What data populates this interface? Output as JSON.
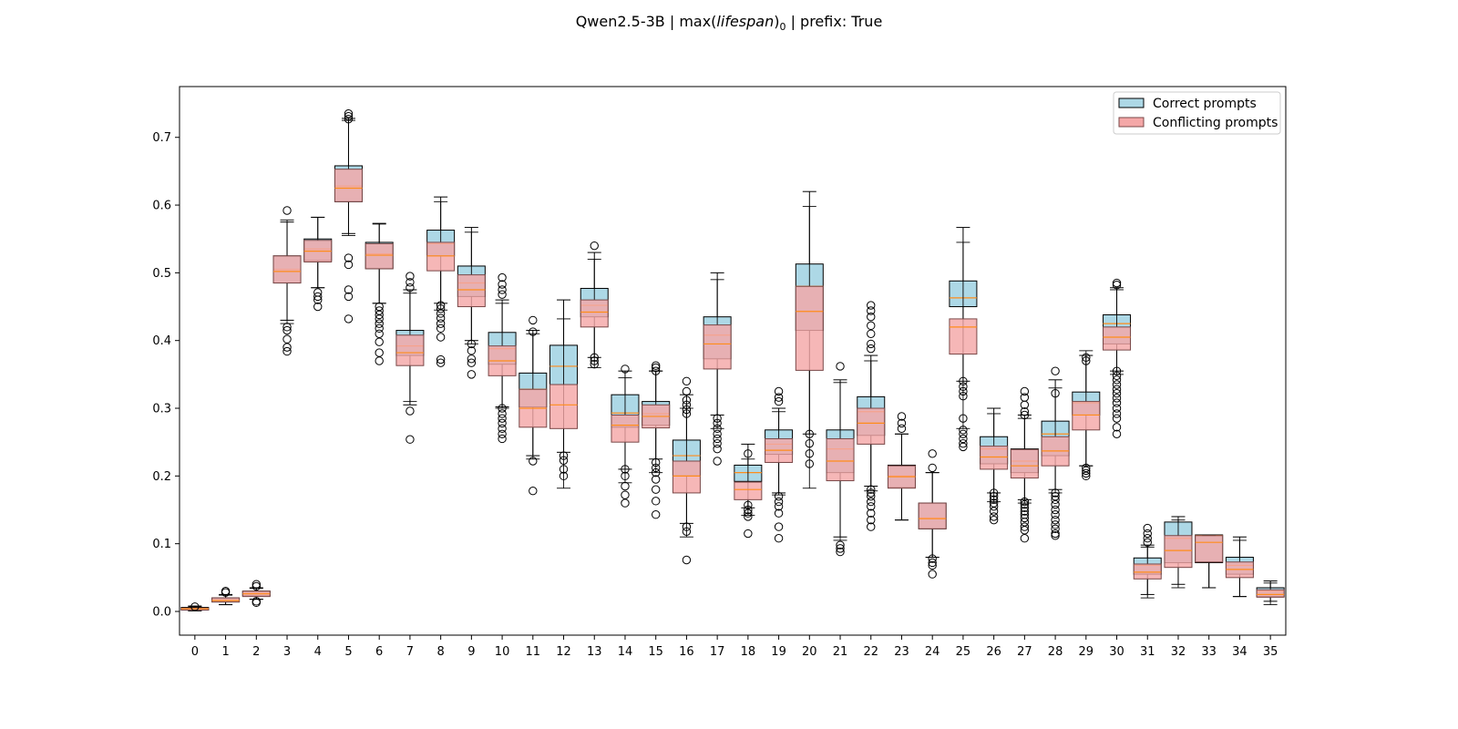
{
  "title": {
    "model": "Qwen2.5-3B",
    "sep1": " | max(",
    "metric": "lifespan",
    "close": ")",
    "sub": "0",
    "sep2": " | prefix: True"
  },
  "chart_data": {
    "type": "boxplot",
    "xlabel": "",
    "ylabel": "",
    "ylim": [
      -0.035,
      0.775
    ],
    "yticks": [
      0.0,
      0.1,
      0.2,
      0.3,
      0.4,
      0.5,
      0.6,
      0.7
    ],
    "ytick_labels": [
      "0.0",
      "0.1",
      "0.2",
      "0.3",
      "0.4",
      "0.5",
      "0.6",
      "0.7"
    ],
    "categories": [
      "0",
      "1",
      "2",
      "3",
      "4",
      "5",
      "6",
      "7",
      "8",
      "9",
      "10",
      "11",
      "12",
      "13",
      "14",
      "15",
      "16",
      "17",
      "18",
      "19",
      "20",
      "21",
      "22",
      "23",
      "24",
      "25",
      "26",
      "27",
      "28",
      "29",
      "30",
      "31",
      "32",
      "33",
      "34",
      "35"
    ],
    "legend_position": "top-right",
    "series": [
      {
        "name": "Correct prompts",
        "color": "#add8e6",
        "stats": [
          [
            0.001,
            0.002,
            0.004,
            0.006,
            0.008
          ],
          [
            0.01,
            0.014,
            0.017,
            0.02,
            0.025
          ],
          [
            0.018,
            0.023,
            0.027,
            0.03,
            0.035
          ],
          [
            0.43,
            0.485,
            0.505,
            0.525,
            0.575
          ],
          [
            0.478,
            0.518,
            0.535,
            0.55,
            0.582
          ],
          [
            0.558,
            0.605,
            0.628,
            0.658,
            0.728
          ],
          [
            0.455,
            0.506,
            0.528,
            0.545,
            0.573
          ],
          [
            0.305,
            0.378,
            0.392,
            0.415,
            0.475
          ],
          [
            0.455,
            0.525,
            0.543,
            0.563,
            0.612
          ],
          [
            0.4,
            0.465,
            0.485,
            0.51,
            0.567
          ],
          [
            0.302,
            0.365,
            0.388,
            0.412,
            0.46
          ],
          [
            0.23,
            0.302,
            0.328,
            0.352,
            0.415
          ],
          [
            0.235,
            0.335,
            0.362,
            0.393,
            0.46
          ],
          [
            0.375,
            0.435,
            0.452,
            0.477,
            0.53
          ],
          [
            0.21,
            0.272,
            0.293,
            0.32,
            0.355
          ],
          [
            0.225,
            0.275,
            0.292,
            0.31,
            0.355
          ],
          [
            0.13,
            0.2,
            0.23,
            0.253,
            0.32
          ],
          [
            0.29,
            0.373,
            0.408,
            0.435,
            0.5
          ],
          [
            0.153,
            0.192,
            0.205,
            0.216,
            0.247
          ],
          [
            0.175,
            0.232,
            0.247,
            0.268,
            0.3
          ],
          [
            0.262,
            0.415,
            0.48,
            0.513,
            0.62
          ],
          [
            0.11,
            0.205,
            0.24,
            0.268,
            0.342
          ],
          [
            0.185,
            0.26,
            0.295,
            0.317,
            0.378
          ],
          [
            0.135,
            0.183,
            0.2,
            0.216,
            0.262
          ],
          [
            0.08,
            0.122,
            0.138,
            0.16,
            0.205
          ],
          [
            0.34,
            0.45,
            0.463,
            0.488,
            0.567
          ],
          [
            0.175,
            0.218,
            0.24,
            0.258,
            0.3
          ],
          [
            0.165,
            0.205,
            0.222,
            0.24,
            0.29
          ],
          [
            0.18,
            0.23,
            0.262,
            0.281,
            0.342
          ],
          [
            0.215,
            0.29,
            0.308,
            0.324,
            0.378
          ],
          [
            0.355,
            0.395,
            0.425,
            0.438,
            0.478
          ],
          [
            0.025,
            0.055,
            0.068,
            0.079,
            0.098
          ],
          [
            0.04,
            0.072,
            0.108,
            0.132,
            0.14
          ],
          [
            0.035,
            0.072,
            0.112,
            0.113,
            0.113
          ],
          [
            0.022,
            0.055,
            0.068,
            0.08,
            0.11
          ],
          [
            0.015,
            0.022,
            0.03,
            0.035,
            0.045
          ]
        ]
      },
      {
        "name": "Conflicting prompts",
        "color": "#f4a7a7",
        "stats": [
          [
            0.001,
            0.002,
            0.004,
            0.005,
            0.007
          ],
          [
            0.01,
            0.014,
            0.016,
            0.02,
            0.024
          ],
          [
            0.018,
            0.022,
            0.026,
            0.03,
            0.034
          ],
          [
            0.425,
            0.485,
            0.502,
            0.525,
            0.578
          ],
          [
            0.478,
            0.516,
            0.532,
            0.548,
            0.582
          ],
          [
            0.555,
            0.605,
            0.625,
            0.653,
            0.725
          ],
          [
            0.455,
            0.506,
            0.526,
            0.543,
            0.572
          ],
          [
            0.31,
            0.363,
            0.382,
            0.408,
            0.47
          ],
          [
            0.445,
            0.503,
            0.525,
            0.545,
            0.605
          ],
          [
            0.395,
            0.45,
            0.475,
            0.497,
            0.56
          ],
          [
            0.3,
            0.348,
            0.37,
            0.392,
            0.455
          ],
          [
            0.225,
            0.272,
            0.3,
            0.328,
            0.41
          ],
          [
            0.182,
            0.27,
            0.305,
            0.335,
            0.432
          ],
          [
            0.36,
            0.42,
            0.442,
            0.46,
            0.52
          ],
          [
            0.19,
            0.25,
            0.275,
            0.29,
            0.345
          ],
          [
            0.205,
            0.271,
            0.288,
            0.305,
            0.355
          ],
          [
            0.11,
            0.175,
            0.2,
            0.222,
            0.3
          ],
          [
            0.27,
            0.358,
            0.395,
            0.423,
            0.49
          ],
          [
            0.142,
            0.165,
            0.18,
            0.191,
            0.225
          ],
          [
            0.172,
            0.22,
            0.238,
            0.255,
            0.295
          ],
          [
            0.182,
            0.356,
            0.443,
            0.48,
            0.598
          ],
          [
            0.105,
            0.193,
            0.222,
            0.255,
            0.338
          ],
          [
            0.178,
            0.247,
            0.278,
            0.3,
            0.37
          ],
          [
            0.135,
            0.182,
            0.199,
            0.215,
            0.262
          ],
          [
            0.08,
            0.122,
            0.137,
            0.16,
            0.205
          ],
          [
            0.27,
            0.38,
            0.42,
            0.432,
            0.545
          ],
          [
            0.162,
            0.21,
            0.228,
            0.244,
            0.292
          ],
          [
            0.16,
            0.197,
            0.215,
            0.239,
            0.285
          ],
          [
            0.175,
            0.215,
            0.237,
            0.258,
            0.33
          ],
          [
            0.215,
            0.268,
            0.29,
            0.31,
            0.385
          ],
          [
            0.35,
            0.386,
            0.405,
            0.42,
            0.475
          ],
          [
            0.02,
            0.048,
            0.058,
            0.07,
            0.095
          ],
          [
            0.035,
            0.065,
            0.09,
            0.112,
            0.135
          ],
          [
            0.035,
            0.073,
            0.102,
            0.112,
            0.112
          ],
          [
            0.022,
            0.05,
            0.062,
            0.073,
            0.105
          ],
          [
            0.01,
            0.021,
            0.025,
            0.032,
            0.042
          ]
        ]
      }
    ],
    "outliers": {
      "0": [
        0.007
      ],
      "1": [
        0.028,
        0.03
      ],
      "2": [
        0.013,
        0.015,
        0.037,
        0.04
      ],
      "3": [
        0.592,
        0.42,
        0.415,
        0.402,
        0.39,
        0.384
      ],
      "4": [
        0.471,
        0.465,
        0.46,
        0.45
      ],
      "5": [
        0.735,
        0.731,
        0.727,
        0.522,
        0.512,
        0.475,
        0.465,
        0.432
      ],
      "6": [
        0.45,
        0.444,
        0.438,
        0.432,
        0.425,
        0.418,
        0.41,
        0.398,
        0.382,
        0.37
      ],
      "7": [
        0.495,
        0.486,
        0.478,
        0.296,
        0.254
      ],
      "8": [
        0.452,
        0.447,
        0.44,
        0.433,
        0.425,
        0.418,
        0.405,
        0.372,
        0.367
      ],
      "9": [
        0.395,
        0.385,
        0.373,
        0.367,
        0.35
      ],
      "10": [
        0.493,
        0.483,
        0.475,
        0.468,
        0.3,
        0.292,
        0.285,
        0.278,
        0.27,
        0.262,
        0.255
      ],
      "11": [
        0.43,
        0.413,
        0.222,
        0.178
      ],
      "12": [
        0.23,
        0.223,
        0.21,
        0.2
      ],
      "13": [
        0.54,
        0.375,
        0.37,
        0.365
      ],
      "14": [
        0.358,
        0.21,
        0.2,
        0.185,
        0.172,
        0.16
      ],
      "15": [
        0.363,
        0.36,
        0.355,
        0.22,
        0.212,
        0.205,
        0.195,
        0.18,
        0.163,
        0.143
      ],
      "16": [
        0.34,
        0.325,
        0.312,
        0.305,
        0.298,
        0.292,
        0.125,
        0.118,
        0.076
      ],
      "17": [
        0.285,
        0.278,
        0.27,
        0.262,
        0.255,
        0.248,
        0.24,
        0.222
      ],
      "18": [
        0.233,
        0.157,
        0.15,
        0.145,
        0.14,
        0.115
      ],
      "19": [
        0.325,
        0.316,
        0.31,
        0.17,
        0.162,
        0.155,
        0.145,
        0.125,
        0.108
      ],
      "20": [
        0.262,
        0.248,
        0.233,
        0.218
      ],
      "21": [
        0.362,
        0.098,
        0.093,
        0.088
      ],
      "22": [
        0.452,
        0.444,
        0.435,
        0.422,
        0.41,
        0.395,
        0.388,
        0.18,
        0.175,
        0.17,
        0.162,
        0.155,
        0.145,
        0.135,
        0.125
      ],
      "23": [
        0.288,
        0.278,
        0.27
      ],
      "24": [
        0.233,
        0.212,
        0.078,
        0.072,
        0.068,
        0.055
      ],
      "25": [
        0.34,
        0.332,
        0.325,
        0.318,
        0.285,
        0.268,
        0.262,
        0.255,
        0.248,
        0.243
      ],
      "26": [
        0.175,
        0.17,
        0.165,
        0.16,
        0.155,
        0.148,
        0.14,
        0.135
      ],
      "27": [
        0.325,
        0.316,
        0.305,
        0.295,
        0.29,
        0.162,
        0.158,
        0.153,
        0.148,
        0.143,
        0.138,
        0.132,
        0.125,
        0.12,
        0.108
      ],
      "28": [
        0.355,
        0.322,
        0.175,
        0.17,
        0.165,
        0.158,
        0.15,
        0.143,
        0.135,
        0.128,
        0.122,
        0.115,
        0.112
      ],
      "29": [
        0.375,
        0.37,
        0.212,
        0.208,
        0.204,
        0.2
      ],
      "30": [
        0.485,
        0.482,
        0.355,
        0.348,
        0.342,
        0.335,
        0.328,
        0.322,
        0.315,
        0.308,
        0.3,
        0.292,
        0.285,
        0.272,
        0.262
      ],
      "31": [
        0.123,
        0.115,
        0.108,
        0.102
      ]
    }
  }
}
